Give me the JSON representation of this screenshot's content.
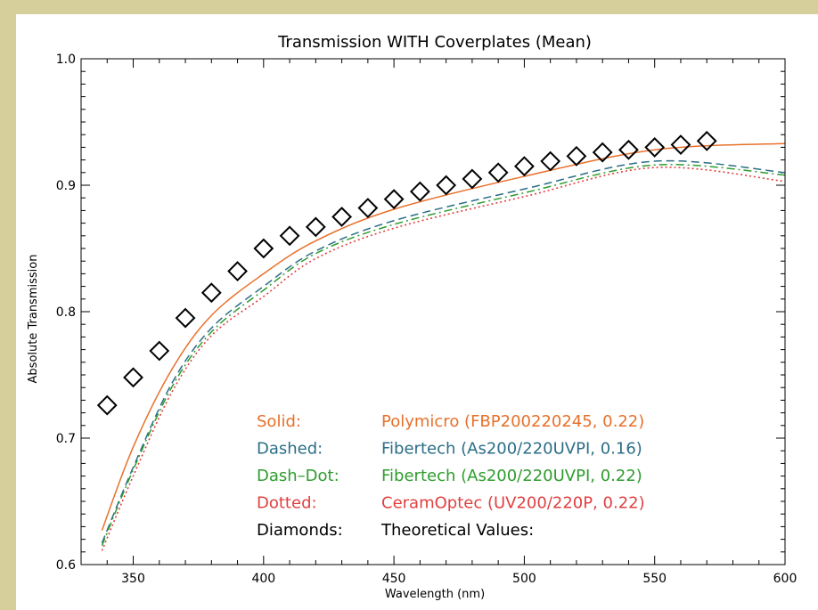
{
  "chart_data": {
    "type": "line",
    "title": "Transmission WITH Coverplates (Mean)",
    "xlabel": "Wavelength (nm)",
    "ylabel": "Absolute Transmission",
    "xlim": [
      330,
      600
    ],
    "ylim": [
      0.6,
      1.0
    ],
    "xticks": [
      350,
      400,
      450,
      500,
      550,
      600
    ],
    "xtick_labels": [
      "350",
      "400",
      "450",
      "500",
      "550",
      "600"
    ],
    "yticks": [
      0.6,
      0.7,
      0.8,
      0.9,
      1.0
    ],
    "ytick_labels": [
      "0.6",
      "0.7",
      "0.8",
      "0.9",
      "1.0"
    ],
    "grid": false,
    "legend_position": "bottom-center",
    "series": [
      {
        "style": "solid",
        "color": "#e8702a",
        "legend_style": "Solid:",
        "legend_desc": "Polymicro (FBP200220245, 0.22)",
        "x": [
          338,
          350,
          365,
          380,
          400,
          420,
          450,
          500,
          550,
          600
        ],
        "y": [
          0.627,
          0.693,
          0.755,
          0.797,
          0.83,
          0.856,
          0.881,
          0.907,
          0.928,
          0.933
        ]
      },
      {
        "style": "dashed",
        "color": "#2b6e86",
        "legend_style": "Dashed:",
        "legend_desc": "Fibertech (As200/220UVPI, 0.16)",
        "x": [
          338,
          350,
          365,
          380,
          400,
          420,
          450,
          500,
          550,
          600
        ],
        "y": [
          0.617,
          0.677,
          0.744,
          0.787,
          0.82,
          0.848,
          0.872,
          0.897,
          0.919,
          0.91
        ]
      },
      {
        "style": "dashdot",
        "color": "#2e9c2e",
        "legend_style": "Dash–Dot:",
        "legend_desc": "Fibertech (As200/220UVPI, 0.22)",
        "x": [
          338,
          350,
          365,
          380,
          400,
          420,
          450,
          500,
          550,
          600
        ],
        "y": [
          0.615,
          0.675,
          0.741,
          0.784,
          0.817,
          0.846,
          0.869,
          0.894,
          0.916,
          0.908
        ]
      },
      {
        "style": "dotted",
        "color": "#e04040",
        "legend_style": "Dotted:",
        "legend_desc": "CeramOptec (UV200/220P, 0.22)",
        "x": [
          338,
          350,
          365,
          380,
          400,
          420,
          450,
          500,
          550,
          600
        ],
        "y": [
          0.611,
          0.67,
          0.737,
          0.781,
          0.812,
          0.842,
          0.866,
          0.891,
          0.914,
          0.903
        ]
      },
      {
        "style": "diamonds",
        "color": "#000000",
        "legend_style": "Diamonds:",
        "legend_desc": "Theoretical Values:",
        "x": [
          340,
          350,
          360,
          370,
          380,
          390,
          400,
          410,
          420,
          430,
          440,
          450,
          460,
          470,
          480,
          490,
          500,
          510,
          520,
          530,
          540,
          550,
          560,
          570
        ],
        "y": [
          0.726,
          0.748,
          0.769,
          0.795,
          0.815,
          0.832,
          0.85,
          0.86,
          0.867,
          0.875,
          0.882,
          0.889,
          0.895,
          0.9,
          0.905,
          0.91,
          0.915,
          0.919,
          0.923,
          0.926,
          0.928,
          0.93,
          0.932,
          0.935
        ]
      }
    ]
  }
}
